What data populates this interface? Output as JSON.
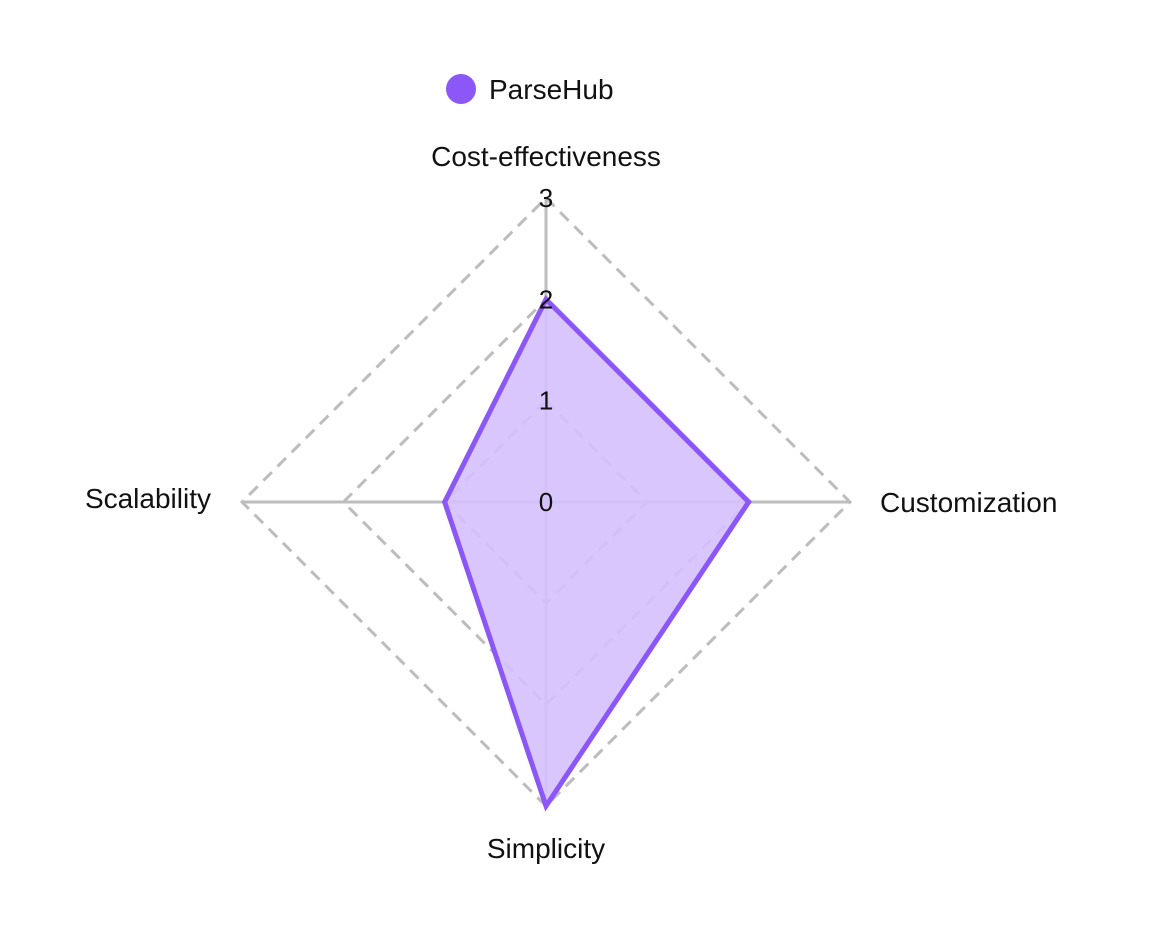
{
  "chart_data": {
    "type": "radar",
    "axes": [
      "Cost-effectiveness",
      "Customization",
      "Simplicity",
      "Scalability"
    ],
    "series": [
      {
        "name": "ParseHub",
        "values": [
          2,
          2,
          3,
          1
        ],
        "color": "#8b57f7",
        "fill": "#d4c0fc"
      }
    ],
    "rlim": [
      0,
      3
    ],
    "ticks": [
      "0",
      "1",
      "2",
      "3"
    ],
    "grid": true,
    "grid_color": "#bdbdbd",
    "legend_position": "top"
  }
}
